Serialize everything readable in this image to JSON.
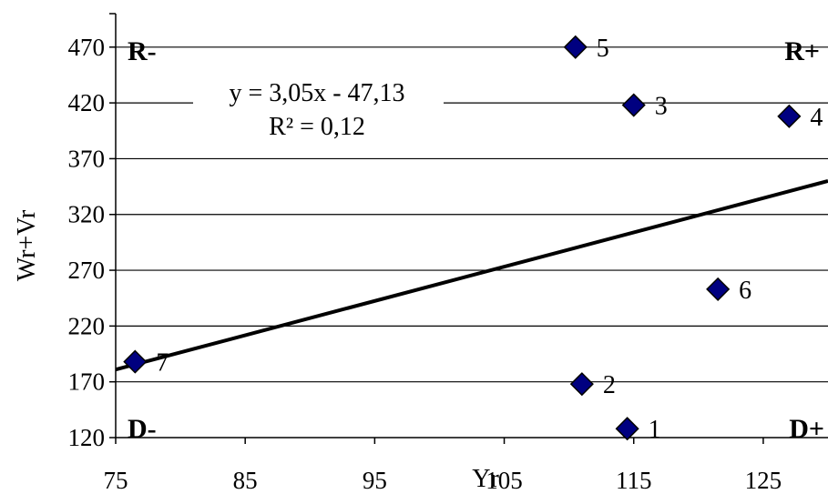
{
  "chart_data": {
    "type": "scatter",
    "xlabel": "Yr",
    "ylabel": "Wr+Vr",
    "xlim": [
      75,
      130
    ],
    "ylim": [
      120,
      500
    ],
    "xticks": [
      75,
      85,
      95,
      105,
      115,
      125
    ],
    "yticks": [
      120,
      170,
      220,
      270,
      320,
      370,
      420,
      470
    ],
    "grid": "horizontal",
    "marker_color": "#000080",
    "points": [
      {
        "label": "1",
        "x": 114.5,
        "y": 128
      },
      {
        "label": "2",
        "x": 111,
        "y": 168
      },
      {
        "label": "3",
        "x": 115,
        "y": 418
      },
      {
        "label": "4",
        "x": 127,
        "y": 408
      },
      {
        "label": "5",
        "x": 110.5,
        "y": 470
      },
      {
        "label": "6",
        "x": 121.5,
        "y": 253
      },
      {
        "label": "7",
        "x": 76.5,
        "y": 188
      }
    ],
    "trendline": {
      "x": [
        75,
        130
      ],
      "y": [
        181,
        350
      ],
      "equation": "y = 3,05x  - 47,13",
      "r_squared": "R² = 0,12"
    },
    "quadrants": {
      "top_left": "R-",
      "top_right": "R+",
      "bottom_left": "D-",
      "bottom_right": "D+"
    }
  }
}
